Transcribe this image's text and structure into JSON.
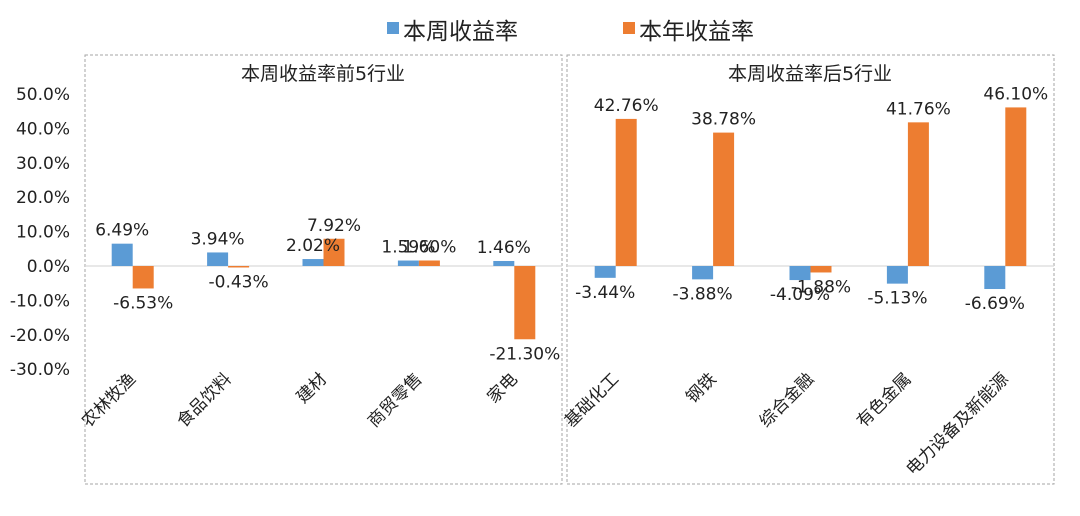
{
  "legend": [
    {
      "name": "本周收益率",
      "color": "#5B9BD5"
    },
    {
      "name": "本年收益率",
      "color": "#ED7D31"
    }
  ],
  "chart_data": [
    {
      "type": "bar",
      "title": "本周收益率前5行业",
      "categories": [
        "农林牧渔",
        "食品饮料",
        "建材",
        "商贸零售",
        "家电"
      ],
      "series": [
        {
          "name": "本周收益率",
          "values": [
            6.49,
            3.94,
            2.02,
            1.59,
            1.46
          ],
          "labels": [
            "6.49%",
            "3.94%",
            "2.02%",
            "1.59%",
            "1.46%"
          ]
        },
        {
          "name": "本年收益率",
          "values": [
            -6.53,
            -0.43,
            7.92,
            1.6,
            -21.3
          ],
          "labels": [
            "-6.53%",
            "-0.43%",
            "7.92%",
            "1.60%",
            "-21.30%"
          ]
        }
      ],
      "ylim": [
        -30,
        50
      ],
      "yticks": [
        "50.0%",
        "40.0%",
        "30.0%",
        "20.0%",
        "10.0%",
        "0.0%",
        "-10.0%",
        "-20.0%",
        "-30.0%"
      ],
      "ytick_values": [
        50,
        40,
        30,
        20,
        10,
        0,
        -10,
        -20,
        -30
      ]
    },
    {
      "type": "bar",
      "title": "本周收益率后5行业",
      "categories": [
        "基础化工",
        "钢铁",
        "综合金融",
        "有色金属",
        "电力设备及新能源"
      ],
      "series": [
        {
          "name": "本周收益率",
          "values": [
            -3.44,
            -3.88,
            -4.09,
            -5.13,
            -6.69
          ],
          "labels": [
            "-3.44%",
            "-3.88%",
            "-4.09%",
            "-5.13%",
            "-6.69%"
          ]
        },
        {
          "name": "本年收益率",
          "values": [
            42.76,
            38.78,
            -1.88,
            41.76,
            46.1
          ],
          "labels": [
            "42.76%",
            "38.78%",
            "-1.88%",
            "41.76%",
            "46.10%"
          ]
        }
      ],
      "ylim": [
        -30,
        50
      ]
    }
  ]
}
